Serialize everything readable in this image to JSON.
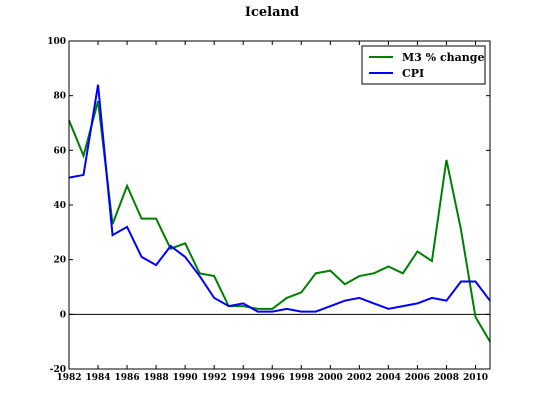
{
  "chart_data": {
    "type": "line",
    "title": "Iceland",
    "xlabel": "",
    "ylabel": "",
    "xlim": [
      1982,
      2011
    ],
    "ylim": [
      -20,
      100
    ],
    "xticks": [
      "1982",
      "1984",
      "1986",
      "1988",
      "1990",
      "1992",
      "1994",
      "1996",
      "1998",
      "2000",
      "2002",
      "2004",
      "2006",
      "2008",
      "2010"
    ],
    "yticks": [
      "-20",
      "0",
      "20",
      "40",
      "60",
      "80",
      "100"
    ],
    "zero_line": true,
    "legend_position": "top-right",
    "x": [
      1982,
      1983,
      1984,
      1985,
      1986,
      1987,
      1988,
      1989,
      1990,
      1991,
      1992,
      1993,
      1994,
      1995,
      1996,
      1997,
      1998,
      1999,
      2000,
      2001,
      2002,
      2003,
      2004,
      2005,
      2006,
      2007,
      2008,
      2009,
      2010,
      2011
    ],
    "series": [
      {
        "name": "M3 % change",
        "color": "#008000",
        "values": [
          71,
          58,
          78,
          33,
          47,
          35,
          35,
          24,
          26,
          15,
          14,
          3,
          3,
          2,
          2,
          6,
          8,
          15,
          16,
          11,
          14,
          15,
          17.5,
          15,
          23,
          19.5,
          56.5,
          31,
          -1,
          -10
        ]
      },
      {
        "name": "CPI",
        "color": "#0000ff",
        "values": [
          50,
          51,
          84,
          29,
          32,
          21,
          18,
          25,
          21,
          14,
          6,
          3,
          4,
          1,
          1,
          2,
          1,
          1,
          3,
          5,
          6,
          4,
          2,
          3,
          4,
          6,
          5,
          12,
          12,
          5
        ]
      }
    ]
  }
}
